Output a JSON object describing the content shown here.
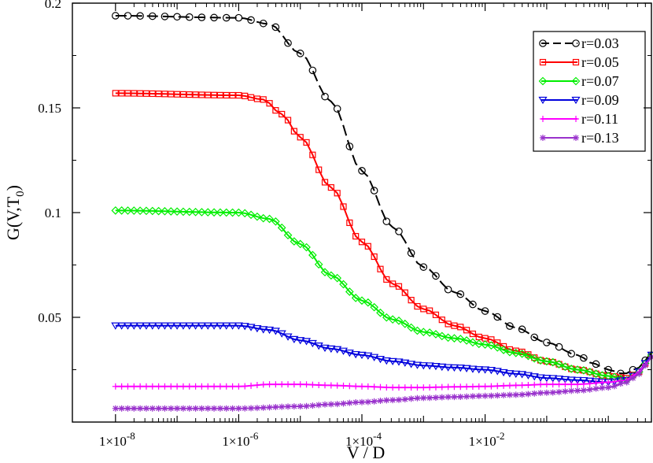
{
  "chart_data": {
    "type": "line",
    "title": "",
    "xlabel": "V / D",
    "ylabel_parts": {
      "main": "G(V,T",
      "sub": "0",
      "close": ")"
    },
    "x_scale": "log10",
    "xlim_exp": [
      -8.7,
      0.7
    ],
    "ylim": [
      0.0,
      0.2
    ],
    "x_ticks": [
      {
        "exp": -8,
        "label_base": "1×10",
        "label_exp": "-8"
      },
      {
        "exp": -6,
        "label_base": "1×10",
        "label_exp": "-6"
      },
      {
        "exp": -4,
        "label_base": "1×10",
        "label_exp": "-4"
      },
      {
        "exp": -2,
        "label_base": "1×10",
        "label_exp": "-2"
      }
    ],
    "y_ticks": [
      {
        "value": 0.05,
        "label": "0.05"
      },
      {
        "value": 0.1,
        "label": "0.1"
      },
      {
        "value": 0.15,
        "label": "0.15"
      },
      {
        "value": 0.2,
        "label": "0.2"
      }
    ],
    "legend_position": "top-right",
    "series": [
      {
        "name": "r=0.03",
        "color": "#000000",
        "marker": "circle",
        "dashed": true,
        "key_exp": [
          -8,
          -6,
          -5.5,
          -5,
          -4.5,
          -4,
          -3.5,
          -3,
          -2.5,
          -2,
          -1.5,
          -1,
          -0.5,
          -0.25,
          0,
          0.25,
          0.5,
          0.7
        ],
        "key_val": [
          0.194,
          0.193,
          0.19,
          0.176,
          0.153,
          0.12,
          0.093,
          0.074,
          0.062,
          0.053,
          0.045,
          0.038,
          0.032,
          0.028,
          0.025,
          0.023,
          0.026,
          0.033
        ]
      },
      {
        "name": "r=0.05",
        "color": "#ff0000",
        "marker": "square",
        "dashed": false,
        "key_exp": [
          -8,
          -6,
          -5.6,
          -5.3,
          -5,
          -4.5,
          -4,
          -3.5,
          -3,
          -2.5,
          -2,
          -1.5,
          -1,
          -0.5,
          0,
          0.3,
          0.5,
          0.7
        ],
        "key_val": [
          0.157,
          0.156,
          0.154,
          0.147,
          0.136,
          0.112,
          0.086,
          0.066,
          0.054,
          0.046,
          0.04,
          0.034,
          0.029,
          0.025,
          0.022,
          0.021,
          0.024,
          0.032
        ]
      },
      {
        "name": "r=0.07",
        "color": "#00ee00",
        "marker": "diamond",
        "dashed": false,
        "key_exp": [
          -8,
          -6,
          -5.5,
          -5,
          -4.5,
          -4,
          -3.5,
          -3,
          -2.5,
          -2,
          -1.5,
          -1,
          -0.5,
          0,
          0.3,
          0.5,
          0.7
        ],
        "key_val": [
          0.101,
          0.1,
          0.097,
          0.085,
          0.07,
          0.058,
          0.049,
          0.043,
          0.04,
          0.037,
          0.033,
          0.029,
          0.025,
          0.022,
          0.02,
          0.024,
          0.032
        ]
      },
      {
        "name": "r=0.09",
        "color": "#0000dd",
        "marker": "triangle-down",
        "dashed": false,
        "key_exp": [
          -8,
          -6,
          -5.5,
          -5,
          -4.5,
          -4,
          -3.5,
          -3,
          -2.5,
          -2,
          -1.5,
          -1,
          -0.5,
          0,
          0.3,
          0.5,
          0.7
        ],
        "key_val": [
          0.046,
          0.046,
          0.044,
          0.039,
          0.035,
          0.032,
          0.029,
          0.027,
          0.026,
          0.025,
          0.023,
          0.021,
          0.02,
          0.019,
          0.02,
          0.024,
          0.032
        ]
      },
      {
        "name": "r=0.11",
        "color": "#ff00ff",
        "marker": "plus",
        "dashed": false,
        "key_exp": [
          -8,
          -6,
          -5.5,
          -5,
          -4.5,
          -4,
          -3.5,
          -3,
          -2.5,
          -2,
          -1.5,
          -1,
          -0.5,
          0,
          0.3,
          0.5,
          0.7
        ],
        "key_val": [
          0.017,
          0.017,
          0.018,
          0.018,
          0.0175,
          0.017,
          0.0165,
          0.0165,
          0.0168,
          0.017,
          0.0175,
          0.018,
          0.018,
          0.019,
          0.02,
          0.024,
          0.031
        ]
      },
      {
        "name": "r=0.13",
        "color": "#9932cc",
        "marker": "star",
        "dashed": false,
        "key_exp": [
          -8,
          -6,
          -5,
          -4.5,
          -4,
          -3.5,
          -3,
          -2.5,
          -2,
          -1.5,
          -1,
          -0.5,
          0,
          0.3,
          0.5,
          0.7
        ],
        "key_val": [
          0.0065,
          0.0065,
          0.0075,
          0.0085,
          0.0095,
          0.0105,
          0.0115,
          0.012,
          0.0125,
          0.013,
          0.014,
          0.015,
          0.0165,
          0.019,
          0.023,
          0.031
        ]
      }
    ]
  }
}
